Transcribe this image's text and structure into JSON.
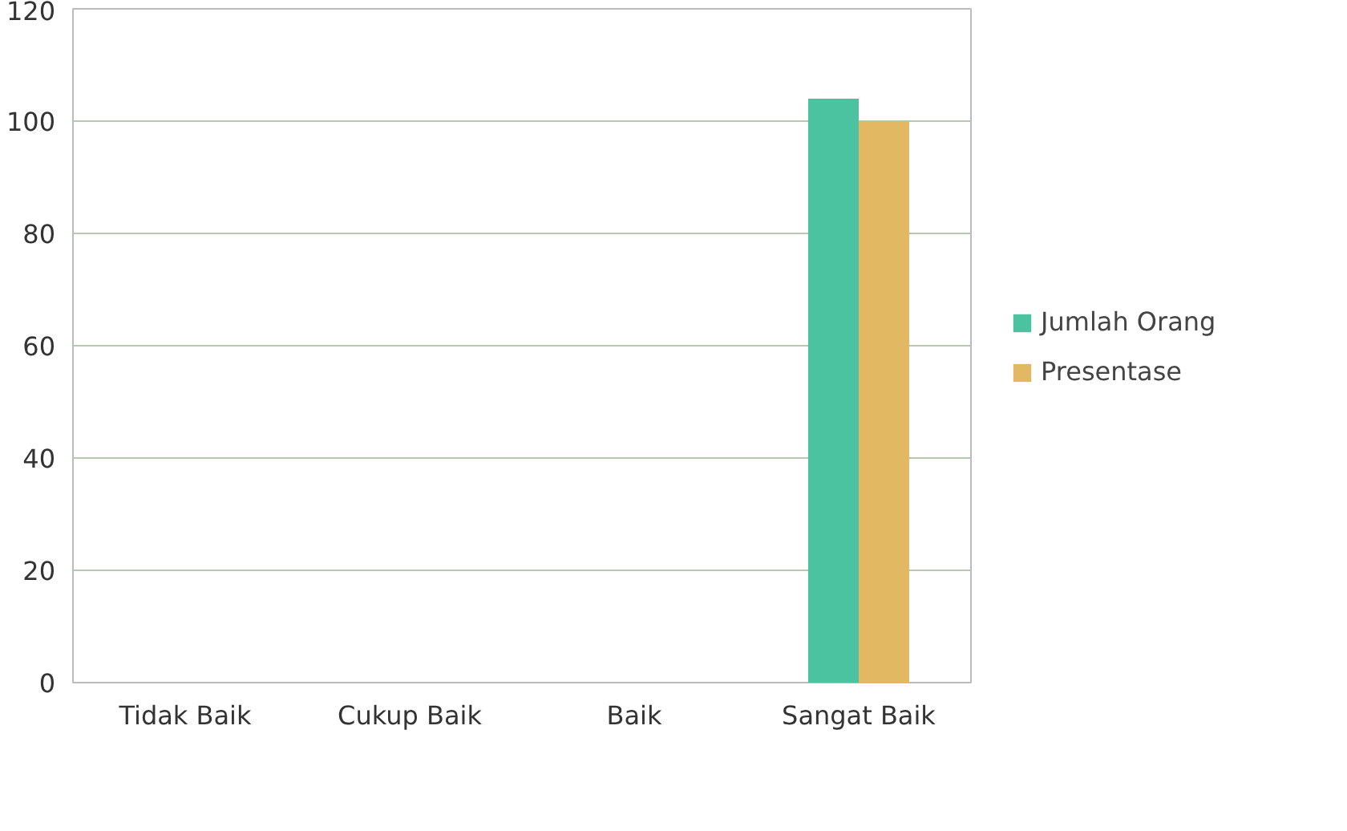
{
  "chart_data": {
    "type": "bar",
    "categories": [
      "Tidak Baik",
      "Cukup Baik",
      "Baik",
      "Sangat Baik"
    ],
    "series": [
      {
        "name": "Jumlah Orang",
        "color": "#4cc3a0",
        "values": [
          0,
          0,
          0,
          104
        ]
      },
      {
        "name": "Presentase",
        "color": "#e3b862",
        "values": [
          0,
          0,
          0,
          100
        ]
      }
    ],
    "ylim": [
      0,
      120
    ],
    "yticks": [
      0,
      20,
      40,
      60,
      80,
      100,
      120
    ],
    "grid": "y",
    "legend": "right"
  }
}
